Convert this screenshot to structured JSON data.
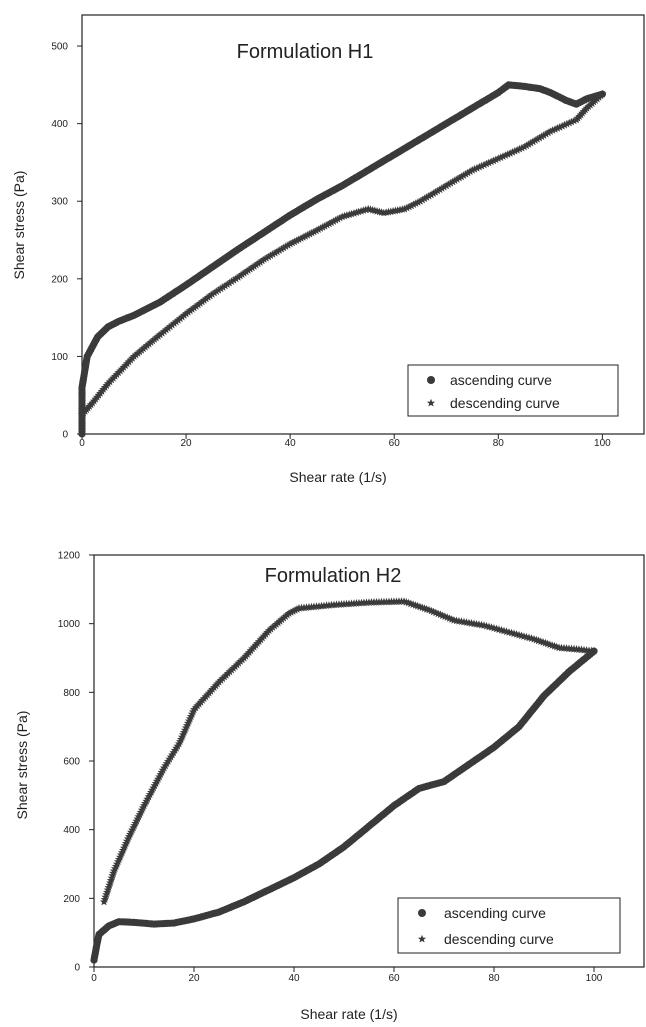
{
  "chart_data": [
    {
      "id": "h1",
      "type": "scatter",
      "title": "Formulation H1",
      "xlabel": "Shear rate (1/s)",
      "ylabel": "Shear stress  (Pa)",
      "xlim": [
        0,
        108
      ],
      "ylim": [
        0,
        540
      ],
      "xticks": [
        0,
        20,
        40,
        60,
        80,
        100
      ],
      "yticks": [
        0,
        100,
        200,
        300,
        400,
        500
      ],
      "grid": false,
      "legend_position": "bottom-right",
      "legend": [
        "ascending curve",
        "descending curve"
      ],
      "series": [
        {
          "name": "ascending curve",
          "marker": "circle",
          "points": [
            [
              0,
              0
            ],
            [
              0,
              60
            ],
            [
              1,
              100
            ],
            [
              3,
              125
            ],
            [
              5,
              138
            ],
            [
              7,
              145
            ],
            [
              10,
              153
            ],
            [
              15,
              170
            ],
            [
              20,
              192
            ],
            [
              25,
              215
            ],
            [
              30,
              238
            ],
            [
              35,
              260
            ],
            [
              40,
              282
            ],
            [
              45,
              302
            ],
            [
              50,
              320
            ],
            [
              55,
              340
            ],
            [
              60,
              360
            ],
            [
              65,
              380
            ],
            [
              70,
              400
            ],
            [
              75,
              420
            ],
            [
              80,
              440
            ],
            [
              82,
              450
            ],
            [
              85,
              448
            ],
            [
              88,
              445
            ],
            [
              90,
              440
            ],
            [
              93,
              430
            ],
            [
              95,
              425
            ],
            [
              97,
              432
            ],
            [
              100,
              438
            ]
          ]
        },
        {
          "name": "descending curve",
          "marker": "star",
          "points": [
            [
              100,
              438
            ],
            [
              97,
              420
            ],
            [
              95,
              405
            ],
            [
              90,
              390
            ],
            [
              85,
              370
            ],
            [
              80,
              355
            ],
            [
              75,
              340
            ],
            [
              70,
              320
            ],
            [
              65,
              300
            ],
            [
              62,
              290
            ],
            [
              58,
              285
            ],
            [
              55,
              290
            ],
            [
              50,
              280
            ],
            [
              45,
              262
            ],
            [
              40,
              245
            ],
            [
              35,
              225
            ],
            [
              30,
              202
            ],
            [
              25,
              180
            ],
            [
              20,
              155
            ],
            [
              15,
              128
            ],
            [
              10,
              100
            ],
            [
              5,
              65
            ],
            [
              2,
              40
            ],
            [
              0,
              25
            ]
          ]
        }
      ]
    },
    {
      "id": "h2",
      "type": "scatter",
      "title": "Formulation H2",
      "xlabel": "Shear rate (1/s)",
      "ylabel": "Shear stress  (Pa)",
      "xlim": [
        0,
        110
      ],
      "ylim": [
        0,
        1200
      ],
      "xticks": [
        0,
        20,
        40,
        60,
        80,
        100
      ],
      "yticks": [
        0,
        200,
        400,
        600,
        800,
        1000,
        1200
      ],
      "grid": false,
      "legend_position": "bottom-right",
      "legend": [
        "ascending curve",
        "descending curve"
      ],
      "series": [
        {
          "name": "ascending curve",
          "marker": "circle",
          "points": [
            [
              0,
              20
            ],
            [
              0.5,
              60
            ],
            [
              1,
              95
            ],
            [
              3,
              120
            ],
            [
              5,
              132
            ],
            [
              8,
              130
            ],
            [
              12,
              125
            ],
            [
              16,
              128
            ],
            [
              20,
              140
            ],
            [
              25,
              160
            ],
            [
              30,
              190
            ],
            [
              35,
              225
            ],
            [
              40,
              260
            ],
            [
              45,
              300
            ],
            [
              50,
              350
            ],
            [
              55,
              410
            ],
            [
              60,
              470
            ],
            [
              65,
              520
            ],
            [
              70,
              540
            ],
            [
              75,
              590
            ],
            [
              80,
              640
            ],
            [
              85,
              700
            ],
            [
              90,
              790
            ],
            [
              95,
              860
            ],
            [
              100,
              920
            ]
          ]
        },
        {
          "name": "descending curve",
          "marker": "star",
          "points": [
            [
              100,
              920
            ],
            [
              97,
              925
            ],
            [
              93,
              930
            ],
            [
              88,
              955
            ],
            [
              83,
              975
            ],
            [
              78,
              995
            ],
            [
              72,
              1010
            ],
            [
              67,
              1040
            ],
            [
              62,
              1065
            ],
            [
              55,
              1062
            ],
            [
              48,
              1055
            ],
            [
              41,
              1045
            ],
            [
              39,
              1030
            ],
            [
              35,
              980
            ],
            [
              30,
              900
            ],
            [
              25,
              830
            ],
            [
              20,
              750
            ],
            [
              17,
              650
            ],
            [
              14,
              580
            ],
            [
              10,
              470
            ],
            [
              7,
              380
            ],
            [
              4,
              280
            ],
            [
              2,
              190
            ]
          ]
        }
      ]
    }
  ]
}
